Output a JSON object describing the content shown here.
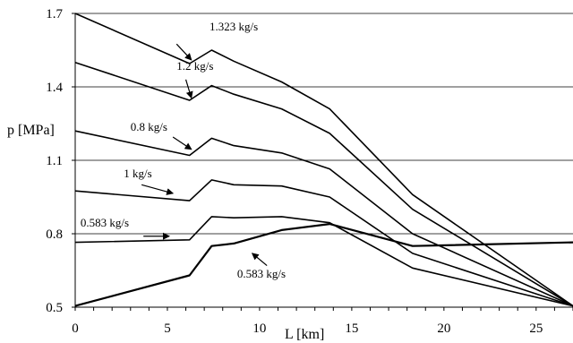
{
  "chart_data": {
    "type": "line",
    "title": "",
    "xlabel": "L [km]",
    "ylabel": "p [MPa]",
    "xlim": [
      0,
      27
    ],
    "ylim": [
      0.5,
      1.7
    ],
    "x_ticks": [
      "0",
      "5",
      "10",
      "15",
      "20",
      "25"
    ],
    "y_ticks": [
      "0.5",
      "0.8",
      "1.1",
      "1.4",
      "1.7"
    ],
    "grid": "horizontal",
    "legend": "none",
    "series": [
      {
        "name": "1.323 kg/s",
        "points": [
          [
            0,
            1.7
          ],
          [
            6.2,
            1.495
          ],
          [
            7.4,
            1.55
          ],
          [
            8.6,
            1.505
          ],
          [
            11.2,
            1.42
          ],
          [
            13.8,
            1.31
          ],
          [
            18.3,
            0.96
          ],
          [
            27,
            0.505
          ]
        ]
      },
      {
        "name": "1.2 kg/s",
        "points": [
          [
            0,
            1.5
          ],
          [
            6.2,
            1.345
          ],
          [
            7.4,
            1.405
          ],
          [
            8.6,
            1.37
          ],
          [
            11.2,
            1.31
          ],
          [
            13.8,
            1.21
          ],
          [
            18.3,
            0.9
          ],
          [
            27,
            0.505
          ]
        ]
      },
      {
        "name": "0.8 kg/s",
        "points": [
          [
            0,
            1.22
          ],
          [
            6.2,
            1.12
          ],
          [
            7.4,
            1.19
          ],
          [
            8.6,
            1.16
          ],
          [
            11.2,
            1.13
          ],
          [
            13.8,
            1.065
          ],
          [
            18.3,
            0.8
          ],
          [
            27,
            0.505
          ]
        ]
      },
      {
        "name": "1 kg/s",
        "points": [
          [
            0,
            0.975
          ],
          [
            6.2,
            0.935
          ],
          [
            7.4,
            1.02
          ],
          [
            8.6,
            1.0
          ],
          [
            11.2,
            0.995
          ],
          [
            13.8,
            0.95
          ],
          [
            18.3,
            0.72
          ],
          [
            27,
            0.505
          ]
        ]
      },
      {
        "name": "0.583 kg/s",
        "points": [
          [
            0,
            0.765
          ],
          [
            6.2,
            0.775
          ],
          [
            7.4,
            0.87
          ],
          [
            8.6,
            0.865
          ],
          [
            11.2,
            0.87
          ],
          [
            13.8,
            0.845
          ],
          [
            18.3,
            0.66
          ],
          [
            27,
            0.505
          ]
        ]
      },
      {
        "name": "0.583 kg/s",
        "points": [
          [
            0,
            0.505
          ],
          [
            6.2,
            0.63
          ],
          [
            7.4,
            0.75
          ],
          [
            8.6,
            0.76
          ],
          [
            11.2,
            0.815
          ],
          [
            13.8,
            0.84
          ],
          [
            18.3,
            0.75
          ],
          [
            27,
            0.765
          ]
        ]
      }
    ],
    "annotations": [
      {
        "text": "1.323 kg/s",
        "x": 8.6,
        "y": 1.63,
        "arrow_to": [
          6.3,
          1.51
        ]
      },
      {
        "text": "1.2 kg/s",
        "x": 6.5,
        "y": 1.47,
        "arrow_to": [
          6.3,
          1.355
        ]
      },
      {
        "text": "0.8 kg/s",
        "x": 4.0,
        "y": 1.22,
        "arrow_to": [
          6.3,
          1.145
        ]
      },
      {
        "text": "1 kg/s",
        "x": 3.4,
        "y": 1.03,
        "arrow_to": [
          5.3,
          0.965
        ]
      },
      {
        "text": "0.583 kg/s",
        "x": 1.6,
        "y": 0.83,
        "arrow_to": [
          5.1,
          0.79
        ]
      },
      {
        "text": "0.583 kg/s",
        "x": 10.1,
        "y": 0.62,
        "arrow_to": [
          9.6,
          0.72
        ]
      }
    ]
  }
}
